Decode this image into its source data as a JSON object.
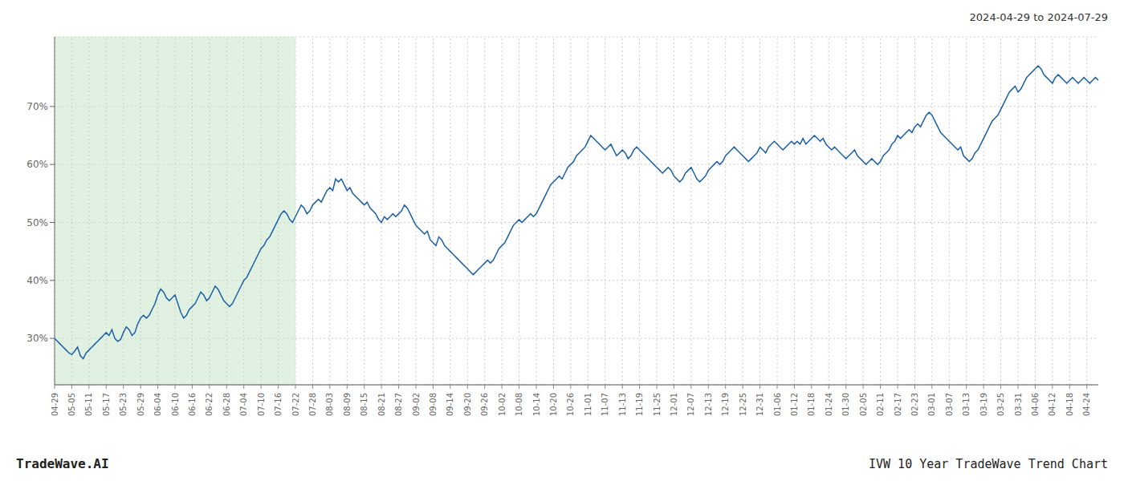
{
  "chart_data": {
    "type": "line",
    "title": "2024-04-29 to 2024-07-29",
    "annotations": [
      "TradeWave.AI",
      "IVW 10 Year TradeWave Trend Chart"
    ],
    "color": "#1a5fa8",
    "grid": true,
    "ylim": [
      22,
      82
    ],
    "yticks": [
      {
        "value": 30,
        "label": "30%"
      },
      {
        "value": 40,
        "label": "40%"
      },
      {
        "value": 50,
        "label": "50%"
      },
      {
        "value": 60,
        "label": "60%"
      },
      {
        "value": 70,
        "label": "70%"
      }
    ],
    "shaded_region": {
      "from": "04-29",
      "to": "07-22",
      "color": "#c8e6c9"
    },
    "categories": [
      "04-29",
      null,
      null,
      null,
      null,
      null,
      "05-05",
      null,
      null,
      null,
      null,
      null,
      "05-11",
      null,
      null,
      null,
      null,
      null,
      "05-17",
      null,
      null,
      null,
      null,
      null,
      "05-23",
      null,
      null,
      null,
      null,
      null,
      "05-29",
      null,
      null,
      null,
      null,
      null,
      "06-04",
      null,
      null,
      null,
      null,
      null,
      "06-10",
      null,
      null,
      null,
      null,
      null,
      "06-16",
      null,
      null,
      null,
      null,
      null,
      "06-22",
      null,
      null,
      null,
      null,
      null,
      "06-28",
      null,
      null,
      null,
      null,
      null,
      "07-04",
      null,
      null,
      null,
      null,
      null,
      "07-10",
      null,
      null,
      null,
      null,
      null,
      "07-16",
      null,
      null,
      null,
      null,
      null,
      "07-22",
      null,
      null,
      null,
      null,
      null,
      "07-28",
      null,
      null,
      null,
      null,
      null,
      "08-03",
      null,
      null,
      null,
      null,
      null,
      "08-09",
      null,
      null,
      null,
      null,
      null,
      "08-15",
      null,
      null,
      null,
      null,
      null,
      "08-21",
      null,
      null,
      null,
      null,
      null,
      "08-27",
      null,
      null,
      null,
      null,
      null,
      "09-02",
      null,
      null,
      null,
      null,
      null,
      "09-08",
      null,
      null,
      null,
      null,
      null,
      "09-14",
      null,
      null,
      null,
      null,
      null,
      "09-20",
      null,
      null,
      null,
      null,
      null,
      "09-26",
      null,
      null,
      null,
      null,
      null,
      "10-02",
      null,
      null,
      null,
      null,
      null,
      "10-08",
      null,
      null,
      null,
      null,
      null,
      "10-14",
      null,
      null,
      null,
      null,
      null,
      "10-20",
      null,
      null,
      null,
      null,
      null,
      "10-26",
      null,
      null,
      null,
      null,
      null,
      "11-01",
      null,
      null,
      null,
      null,
      null,
      "11-07",
      null,
      null,
      null,
      null,
      null,
      "11-13",
      null,
      null,
      null,
      null,
      null,
      "11-19",
      null,
      null,
      null,
      null,
      null,
      "11-25",
      null,
      null,
      null,
      null,
      null,
      "12-01",
      null,
      null,
      null,
      null,
      null,
      "12-07",
      null,
      null,
      null,
      null,
      null,
      "12-13",
      null,
      null,
      null,
      null,
      null,
      "12-19",
      null,
      null,
      null,
      null,
      null,
      "12-25",
      null,
      null,
      null,
      null,
      null,
      "12-31",
      null,
      null,
      null,
      null,
      null,
      "01-06",
      null,
      null,
      null,
      null,
      null,
      "01-12",
      null,
      null,
      null,
      null,
      null,
      "01-18",
      null,
      null,
      null,
      null,
      null,
      "01-24",
      null,
      null,
      null,
      null,
      null,
      "01-30",
      null,
      null,
      null,
      null,
      null,
      "02-05",
      null,
      null,
      null,
      null,
      null,
      "02-11",
      null,
      null,
      null,
      null,
      null,
      "02-17",
      null,
      null,
      null,
      null,
      null,
      "02-23",
      null,
      null,
      null,
      null,
      null,
      "03-01",
      null,
      null,
      null,
      null,
      null,
      "03-07",
      null,
      null,
      null,
      null,
      null,
      "03-13",
      null,
      null,
      null,
      null,
      null,
      "03-19",
      null,
      null,
      null,
      null,
      null,
      "03-25",
      null,
      null,
      null,
      null,
      null,
      "03-31",
      null,
      null,
      null,
      null,
      null,
      "04-06",
      null,
      null,
      null,
      null,
      null,
      "04-12",
      null,
      null,
      null,
      null,
      null,
      "04-18",
      null,
      null,
      null,
      null,
      null,
      "04-24",
      null,
      null,
      null,
      null
    ],
    "values": [
      30.0,
      29.5,
      29.0,
      28.5,
      28.0,
      27.5,
      27.2,
      27.8,
      28.5,
      27.0,
      26.5,
      27.5,
      28.0,
      28.5,
      29.0,
      29.5,
      30.0,
      30.5,
      31.0,
      30.5,
      31.5,
      30.0,
      29.5,
      29.8,
      31.0,
      32.0,
      31.5,
      30.5,
      31.0,
      32.5,
      33.5,
      34.0,
      33.5,
      34.0,
      35.0,
      36.0,
      37.5,
      38.5,
      38.0,
      37.0,
      36.5,
      37.0,
      37.5,
      36.0,
      34.5,
      33.5,
      34.0,
      35.0,
      35.5,
      36.0,
      37.0,
      38.0,
      37.5,
      36.5,
      37.0,
      38.0,
      39.0,
      38.5,
      37.5,
      36.5,
      36.0,
      35.5,
      36.0,
      37.0,
      38.0,
      39.0,
      40.0,
      40.5,
      41.5,
      42.5,
      43.5,
      44.5,
      45.5,
      46.0,
      47.0,
      47.5,
      48.5,
      49.5,
      50.5,
      51.5,
      52.0,
      51.5,
      50.5,
      50.0,
      51.0,
      52.0,
      53.0,
      52.5,
      51.5,
      52.0,
      53.0,
      53.5,
      54.0,
      53.5,
      54.5,
      55.5,
      56.0,
      55.5,
      57.5,
      57.0,
      57.5,
      56.5,
      55.5,
      56.0,
      55.0,
      54.5,
      54.0,
      53.5,
      53.0,
      53.5,
      52.5,
      52.0,
      51.5,
      50.5,
      50.0,
      51.0,
      50.5,
      51.0,
      51.5,
      51.0,
      51.5,
      52.0,
      53.0,
      52.5,
      51.5,
      50.5,
      49.5,
      49.0,
      48.5,
      48.0,
      48.5,
      47.0,
      46.5,
      46.0,
      47.5,
      47.0,
      46.0,
      45.5,
      45.0,
      44.5,
      44.0,
      43.5,
      43.0,
      42.5,
      42.0,
      41.5,
      41.0,
      41.5,
      42.0,
      42.5,
      43.0,
      43.5,
      43.0,
      43.5,
      44.5,
      45.5,
      46.0,
      46.5,
      47.5,
      48.5,
      49.5,
      50.0,
      50.5,
      50.0,
      50.5,
      51.0,
      51.5,
      51.0,
      51.5,
      52.5,
      53.5,
      54.5,
      55.5,
      56.5,
      57.0,
      57.5,
      58.0,
      57.5,
      58.5,
      59.5,
      60.0,
      60.5,
      61.5,
      62.0,
      62.5,
      63.0,
      64.0,
      65.0,
      64.5,
      64.0,
      63.5,
      63.0,
      62.5,
      63.0,
      63.5,
      62.5,
      61.5,
      62.0,
      62.5,
      62.0,
      61.0,
      61.5,
      62.5,
      63.0,
      62.5,
      62.0,
      61.5,
      61.0,
      60.5,
      60.0,
      59.5,
      59.0,
      58.5,
      59.0,
      59.5,
      59.0,
      58.0,
      57.5,
      57.0,
      57.5,
      58.5,
      59.0,
      59.5,
      58.5,
      57.5,
      57.0,
      57.5,
      58.0,
      59.0,
      59.5,
      60.0,
      60.5,
      60.0,
      60.5,
      61.5,
      62.0,
      62.5,
      63.0,
      62.5,
      62.0,
      61.5,
      61.0,
      60.5,
      61.0,
      61.5,
      62.0,
      63.0,
      62.5,
      62.0,
      63.0,
      63.5,
      64.0,
      63.5,
      63.0,
      62.5,
      63.0,
      63.5,
      64.0,
      63.5,
      64.0,
      63.5,
      64.5,
      63.5,
      64.0,
      64.5,
      65.0,
      64.5,
      64.0,
      64.5,
      63.5,
      63.0,
      62.5,
      63.0,
      62.5,
      62.0,
      61.5,
      61.0,
      61.5,
      62.0,
      62.5,
      61.5,
      61.0,
      60.5,
      60.0,
      60.5,
      61.0,
      60.5,
      60.0,
      60.5,
      61.5,
      62.0,
      62.5,
      63.5,
      64.0,
      65.0,
      64.5,
      65.0,
      65.5,
      66.0,
      65.5,
      66.5,
      67.0,
      66.5,
      67.5,
      68.5,
      69.0,
      68.5,
      67.5,
      66.5,
      65.5,
      65.0,
      64.5,
      64.0,
      63.5,
      63.0,
      62.5,
      63.0,
      61.5,
      61.0,
      60.5,
      61.0,
      62.0,
      62.5,
      63.5,
      64.5,
      65.5,
      66.5,
      67.5,
      68.0,
      68.5,
      69.5,
      70.5,
      71.5,
      72.5,
      73.0,
      73.5,
      72.5,
      73.0,
      74.0,
      75.0,
      75.5,
      76.0,
      76.5,
      77.0,
      76.5,
      75.5,
      75.0,
      74.5,
      74.0,
      75.0,
      75.5,
      75.0,
      74.5,
      74.0,
      74.5,
      75.0,
      74.5,
      74.0,
      74.5,
      75.0,
      74.5,
      74.0,
      74.5,
      75.0,
      74.5
    ]
  }
}
